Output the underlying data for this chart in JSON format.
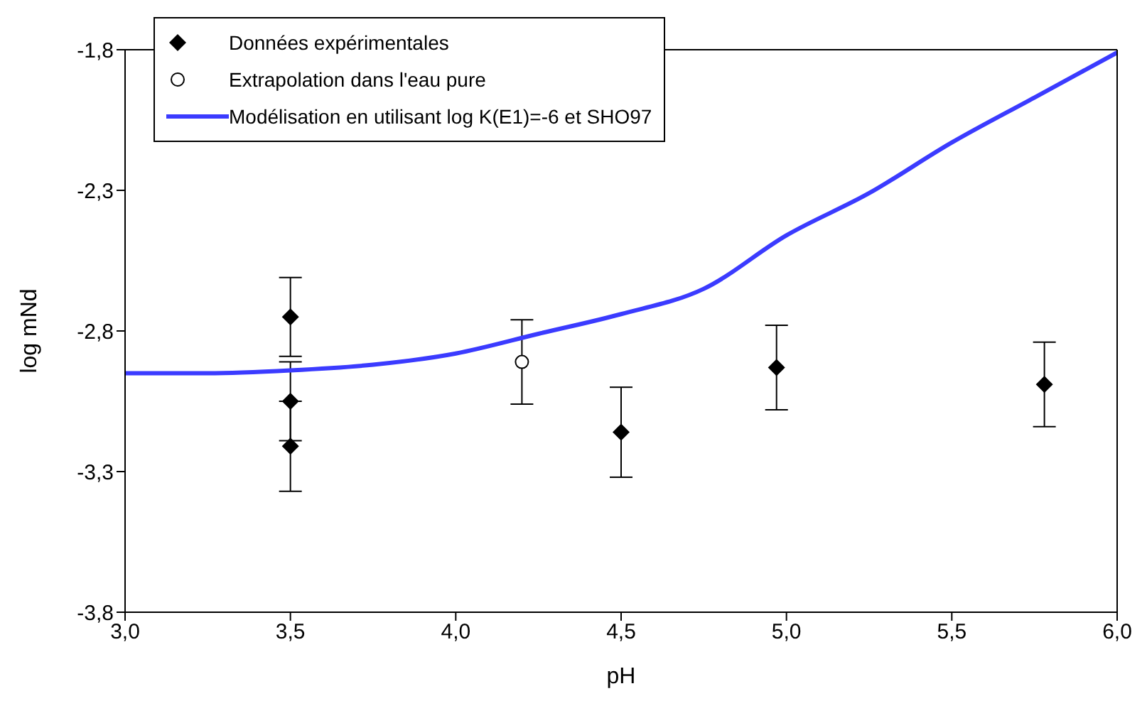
{
  "chart_data": {
    "type": "scatter",
    "xlabel": "pH",
    "ylabel": "log mNd",
    "xlim": [
      3.0,
      6.0
    ],
    "xticks": [
      {
        "value": 3.0,
        "label": "3,0"
      },
      {
        "value": 3.5,
        "label": "3,5"
      },
      {
        "value": 4.0,
        "label": "4,0"
      },
      {
        "value": 4.5,
        "label": "4,5"
      },
      {
        "value": 5.0,
        "label": "5,0"
      },
      {
        "value": 5.5,
        "label": "5,5"
      },
      {
        "value": 6.0,
        "label": "6,0"
      }
    ],
    "ylim": [
      -3.8,
      -1.8
    ],
    "yticks": [
      {
        "value": -3.8,
        "label": "-3,8"
      },
      {
        "value": -3.3,
        "label": "-3,3"
      },
      {
        "value": -2.8,
        "label": "-2,8"
      },
      {
        "value": -2.3,
        "label": "-2,3"
      },
      {
        "value": -1.8,
        "label": "-1,8"
      }
    ],
    "legend": "top left",
    "series": [
      {
        "name": "Données expérimentales",
        "marker": "diamond",
        "color": "#000000",
        "x": [
          3.5,
          3.5,
          3.5,
          4.5,
          4.97,
          5.78
        ],
        "values": [
          -2.75,
          -3.05,
          -3.21,
          -3.16,
          -2.93,
          -2.99
        ],
        "errors": [
          0.14,
          0.14,
          0.16,
          0.16,
          0.15,
          0.15
        ]
      },
      {
        "name": "Extrapolation dans l'eau pure",
        "marker": "circle",
        "color": "#000000",
        "x": [
          4.2
        ],
        "values": [
          -2.91
        ],
        "errors": [
          0.15
        ]
      },
      {
        "name": "Modélisation en utilisant log K(E1)=-6 et SHO97",
        "type": "line",
        "marker": "none",
        "line_style": "solid",
        "color": "#3b3bff",
        "x": [
          3.0,
          3.25,
          3.5,
          3.75,
          4.0,
          4.25,
          4.5,
          4.75,
          5.0,
          5.25,
          5.5,
          5.75,
          6.0
        ],
        "values": [
          -2.95,
          -2.95,
          -2.94,
          -2.92,
          -2.88,
          -2.81,
          -2.74,
          -2.65,
          -2.46,
          -2.31,
          -2.13,
          -1.97,
          -1.81
        ]
      }
    ]
  }
}
